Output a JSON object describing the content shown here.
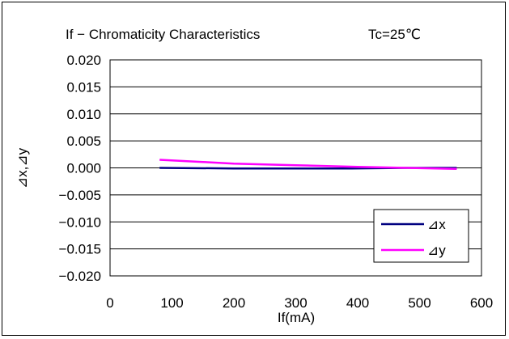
{
  "chart_data": {
    "type": "line",
    "title": "If − Chromaticity Characteristics",
    "subtitle": "Tc=25℃",
    "xlabel": "If(mA)",
    "ylabel": "⊿x,⊿y",
    "xlim": [
      0,
      600
    ],
    "ylim": [
      -0.02,
      0.02
    ],
    "x_ticks": [
      "0",
      "100",
      "200",
      "300",
      "400",
      "500",
      "600"
    ],
    "y_ticks": [
      "0.020",
      "0.015",
      "0.010",
      "0.005",
      "0.000",
      "−0.005",
      "−0.010",
      "−0.015",
      "−0.020"
    ],
    "grid": "horizontal",
    "legend_position": "bottom-right",
    "series": [
      {
        "name": "⊿x",
        "color": "#000080",
        "points": [
          [
            80,
            0.0
          ],
          [
            200,
            -0.0001
          ],
          [
            300,
            -0.0001
          ],
          [
            390,
            -0.0001
          ],
          [
            480,
            0.0
          ],
          [
            560,
            0.0
          ]
        ]
      },
      {
        "name": "⊿y",
        "color": "#ff00ff",
        "points": [
          [
            80,
            0.0015
          ],
          [
            150,
            0.0011
          ],
          [
            200,
            0.0008
          ],
          [
            300,
            0.0005
          ],
          [
            400,
            0.0002
          ],
          [
            480,
            0.0
          ],
          [
            560,
            -0.0002
          ]
        ]
      }
    ]
  }
}
